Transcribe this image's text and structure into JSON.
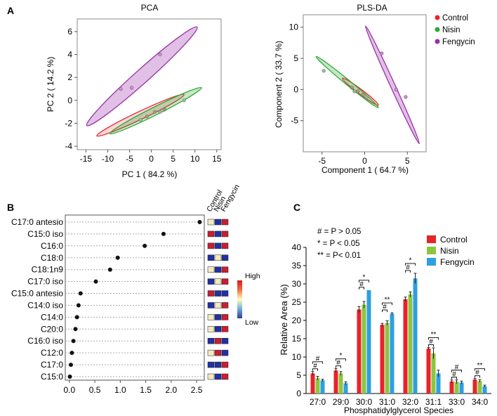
{
  "panel_labels": {
    "a": "A",
    "b": "B",
    "c": "C"
  },
  "chart_data": [
    {
      "id": "pca",
      "type": "scatter",
      "title": "PCA",
      "xlabel": "PC 1 ( 84.2 %)",
      "ylabel": "PC 2 ( 14.2 %)",
      "xlim": [
        -17,
        16
      ],
      "ylim": [
        -4.3,
        7.1
      ],
      "xticks": [
        -15,
        -10,
        -5,
        0,
        5,
        10,
        15
      ],
      "yticks": [
        -4,
        -2,
        0,
        2,
        4,
        6
      ],
      "groups": [
        {
          "name": "Control",
          "color": "#e8232a",
          "fill": "rgba(232,35,42,0.18)",
          "points": [
            [
              -1,
              -1.4
            ],
            [
              0.8,
              -1.0
            ],
            [
              3,
              -0.8
            ]
          ],
          "ellipse": {
            "p1": [
              -12.5,
              -3.1
            ],
            "p2": [
              7.5,
              0.5
            ],
            "width": 0.55
          }
        },
        {
          "name": "Nisin",
          "color": "#2ea836",
          "fill": "rgba(46,168,54,0.28)",
          "points": [
            [
              -2.5,
              -1.7
            ],
            [
              2,
              -1.0
            ],
            [
              7.5,
              0
            ]
          ],
          "ellipse": {
            "p1": [
              -9.5,
              -2.9
            ],
            "p2": [
              11.5,
              1.1
            ],
            "width": 0.55
          }
        },
        {
          "name": "Fengycin",
          "color": "#9b2fa8",
          "fill": "rgba(155,47,168,0.30)",
          "points": [
            [
              -7,
              1.0
            ],
            [
              -4.5,
              1.1
            ],
            [
              2,
              4.0
            ]
          ],
          "ellipse": {
            "p1": [
              -14.8,
              -2.2
            ],
            "p2": [
              10.5,
              6.4
            ],
            "width": 0.95
          }
        }
      ]
    },
    {
      "id": "plsda",
      "type": "scatter",
      "title": "PLS-DA",
      "xlabel": "Component 1 ( 64.7 %)",
      "ylabel": "Component 2 ( 33.7 %)",
      "xlim": [
        -7.2,
        7.2
      ],
      "ylim": [
        -10,
        12
      ],
      "xticks": [
        -5,
        0,
        5
      ],
      "yticks": [
        -5,
        0,
        5,
        10
      ],
      "legend": [
        "Control",
        "Nisin",
        "Fengycin"
      ],
      "groups": [
        {
          "name": "Control",
          "color": "#e8232a",
          "fill": "rgba(232,35,42,0.15)",
          "points": [
            [
              -1.5,
              0.3
            ],
            [
              -0.8,
              -0.3
            ],
            [
              -0.2,
              -0.8
            ]
          ],
          "ellipse": {
            "p1": [
              -2.6,
              1.8
            ],
            "p2": [
              1.6,
              -2.5
            ],
            "width": 0.38
          }
        },
        {
          "name": "Nisin",
          "color": "#2ea836",
          "fill": "rgba(46,168,54,0.28)",
          "points": [
            [
              -4.8,
              3.0
            ],
            [
              -1.2,
              -0.3
            ],
            [
              0.2,
              -1.2
            ]
          ],
          "ellipse": {
            "p1": [
              -5.7,
              5.3
            ],
            "p2": [
              1.6,
              -2.9
            ],
            "width": 0.4
          }
        },
        {
          "name": "Fengycin",
          "color": "#9b2fa8",
          "fill": "rgba(155,47,168,0.30)",
          "points": [
            [
              2.0,
              5.8
            ],
            [
              3.7,
              0
            ],
            [
              4.8,
              -1.2
            ]
          ],
          "ellipse": {
            "p1": [
              0.1,
              10.2
            ],
            "p2": [
              6.4,
              -8.7
            ],
            "width": 0.38
          }
        }
      ]
    },
    {
      "id": "vip",
      "type": "scatter",
      "title": "",
      "xlim": [
        -0.08,
        2.65
      ],
      "xticks": [
        "0.0",
        "0.5",
        "1.0",
        "1.5",
        "2.0",
        "2.5"
      ],
      "column_headers": [
        "Control",
        "Nisin",
        "Fengycin"
      ],
      "scale_labels": {
        "high": "High",
        "low": "Low"
      },
      "rows": [
        {
          "label": "C17:0 antesio",
          "value": 2.56,
          "colors": [
            "#f2e9c2",
            "#2131a3",
            "#c81e32"
          ]
        },
        {
          "label": "C15:0 iso",
          "value": 1.85,
          "colors": [
            "#c81e32",
            "#2131a3",
            "#c81e32"
          ]
        },
        {
          "label": "C16:0",
          "value": 1.48,
          "colors": [
            "#c81e32",
            "#2131a3",
            "#c81e32"
          ]
        },
        {
          "label": "C18:0",
          "value": 0.95,
          "colors": [
            "#2131a3",
            "#f2e9c2",
            "#2131a3"
          ]
        },
        {
          "label": "C18:1n9",
          "value": 0.8,
          "colors": [
            "#f2e9c2",
            "#2131a3",
            "#c81e32"
          ]
        },
        {
          "label": "C17:0 iso",
          "value": 0.52,
          "colors": [
            "#2131a3",
            "#f2e9c2",
            "#c81e32"
          ]
        },
        {
          "label": "C15:0 antesio",
          "value": 0.22,
          "colors": [
            "#c81e32",
            "#2131a3",
            "#2131a3"
          ]
        },
        {
          "label": "C14:0 iso",
          "value": 0.18,
          "colors": [
            "#2131a3",
            "#f2e9c2",
            "#c81e32"
          ]
        },
        {
          "label": "C14:0",
          "value": 0.15,
          "colors": [
            "#f2e9c2",
            "#2131a3",
            "#c81e32"
          ]
        },
        {
          "label": "C20:0",
          "value": 0.12,
          "colors": [
            "#f2e9c2",
            "#2131a3",
            "#c81e32"
          ]
        },
        {
          "label": "C16:0 iso",
          "value": 0.08,
          "colors": [
            "#2131a3",
            "#c81e32",
            "#2131a3"
          ]
        },
        {
          "label": "C12:0",
          "value": 0.05,
          "colors": [
            "#f2e9c2",
            "#c81e32",
            "#2131a3"
          ]
        },
        {
          "label": "C17:0",
          "value": 0.03,
          "colors": [
            "#2131a3",
            "#2131a3",
            "#c81e32"
          ]
        },
        {
          "label": "C15:0",
          "value": 0.01,
          "colors": [
            "#f2e9c2",
            "#2131a3",
            "#c81e32"
          ]
        }
      ]
    },
    {
      "id": "pg-species",
      "type": "bar",
      "title": "",
      "xlabel": "Phosphatidylglycerol Species",
      "ylabel": "Relative Area (%)",
      "ylim": [
        0,
        40
      ],
      "yticks": [
        0,
        5,
        10,
        15,
        20,
        25,
        30,
        35,
        40
      ],
      "categories": [
        "27:0",
        "29:0",
        "30:0",
        "31:0",
        "32:0",
        "31:1",
        "33:0",
        "34:0"
      ],
      "series": [
        {
          "name": "Control",
          "color": "#e8232a",
          "values": [
            5.5,
            6.3,
            23.0,
            18.8,
            25.8,
            12.3,
            3.3,
            3.8
          ],
          "errors": [
            0.5,
            0.5,
            0.8,
            0.4,
            0.6,
            0.3,
            0.4,
            0.3
          ]
        },
        {
          "name": "Nisin",
          "color": "#8cc63f",
          "values": [
            4.2,
            5.5,
            24.3,
            19.3,
            27.1,
            11.0,
            3.2,
            3.4
          ],
          "errors": [
            0.5,
            0.5,
            0.9,
            0.6,
            0.7,
            1.5,
            0.5,
            0.4
          ]
        },
        {
          "name": "Fengycin",
          "color": "#2e9fe0",
          "values": [
            3.6,
            2.8,
            28.3,
            21.8,
            31.5,
            5.5,
            3.0,
            2.0
          ],
          "errors": [
            0.3,
            0.4,
            0.0,
            0.3,
            1.4,
            0.9,
            0.4,
            0.3
          ]
        }
      ],
      "significance": [
        {
          "category": "27:0",
          "pairs": [
            [
              "Control",
              "Nisin",
              "#"
            ],
            [
              "Control",
              "Fengycin",
              "#"
            ]
          ]
        },
        {
          "category": "29:0",
          "pairs": [
            [
              "Control",
              "Nisin",
              "#"
            ],
            [
              "Control",
              "Fengycin",
              "*"
            ]
          ]
        },
        {
          "category": "30:0",
          "pairs": [
            [
              "Control",
              "Nisin",
              "#"
            ],
            [
              "Control",
              "Fengycin",
              "*"
            ]
          ]
        },
        {
          "category": "31:0",
          "pairs": [
            [
              "Control",
              "Nisin",
              "#"
            ],
            [
              "Control",
              "Fengycin",
              "**"
            ]
          ]
        },
        {
          "category": "32:0",
          "pairs": [
            [
              "Control",
              "Nisin",
              "#"
            ],
            [
              "Control",
              "Fengycin",
              "*"
            ]
          ]
        },
        {
          "category": "31:1",
          "pairs": [
            [
              "Control",
              "Nisin",
              "#"
            ],
            [
              "Control",
              "Fengycin",
              "**"
            ]
          ]
        },
        {
          "category": "33:0",
          "pairs": [
            [
              "Control",
              "Nisin",
              "#"
            ],
            [
              "Control",
              "Fengycin",
              "#"
            ]
          ]
        },
        {
          "category": "34:0",
          "pairs": [
            [
              "Control",
              "Nisin",
              "#"
            ],
            [
              "Control",
              "Fengycin",
              "**"
            ]
          ]
        }
      ],
      "key": [
        "# = P > 0.05",
        "* = P < 0.05",
        "** = P< 0.01"
      ]
    }
  ]
}
